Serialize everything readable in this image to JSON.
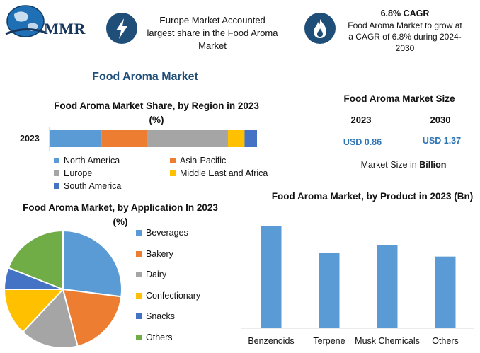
{
  "logo": {
    "text": "MMR"
  },
  "highlights": [
    {
      "icon": "lightning-icon",
      "text": "Europe Market Accounted largest share in the Food Aroma Market"
    },
    {
      "icon": "flame-icon",
      "title": "6.8% CAGR",
      "text": "Food Aroma Market to grow at a CAGR of 6.8% during 2024-2030"
    }
  ],
  "main_title": "Food Aroma Market",
  "market_size": {
    "title": "Food Aroma Market Size",
    "years": [
      "2023",
      "2030"
    ],
    "values": [
      "USD 0.86",
      "USD 1.37"
    ],
    "note_prefix": "Market Size in ",
    "note_bold": "Billion"
  },
  "colors": {
    "north_america": "#5b9bd5",
    "asia_pacific": "#ed7d31",
    "europe": "#a5a5a5",
    "middle_east_africa": "#ffc000",
    "south_america": "#4472c4",
    "others": "#70ad47",
    "brand": "#1f4e79"
  },
  "chart_data": [
    {
      "type": "bar",
      "orientation": "horizontal-stacked",
      "title": "Food Aroma Market Share, by Region in 2023 (%)",
      "categories": [
        "2023"
      ],
      "series": [
        {
          "name": "North America",
          "values": [
            25
          ]
        },
        {
          "name": "Asia-Pacific",
          "values": [
            22
          ]
        },
        {
          "name": "Europe",
          "values": [
            39
          ]
        },
        {
          "name": "Middle East and Africa",
          "values": [
            8
          ]
        },
        {
          "name": "South America",
          "values": [
            6
          ]
        }
      ],
      "xlim": [
        0,
        100
      ],
      "legend": "bottom"
    },
    {
      "type": "pie",
      "title": "Food Aroma Market, by Application In 2023 (%)",
      "labels": [
        "Beverages",
        "Bakery",
        "Dairy",
        "Confectionary",
        "Snacks",
        "Others"
      ],
      "values": [
        27,
        19,
        16,
        13,
        6,
        19
      ],
      "legend": "right"
    },
    {
      "type": "bar",
      "title": "Food Aroma Market, by Product in 2023 (Bn)",
      "categories": [
        "Benzenoids",
        "Terpene",
        "Musk Chemicals",
        "Others"
      ],
      "values": [
        0.27,
        0.2,
        0.22,
        0.19
      ],
      "ylim": [
        0,
        0.3
      ],
      "grid": false
    }
  ]
}
